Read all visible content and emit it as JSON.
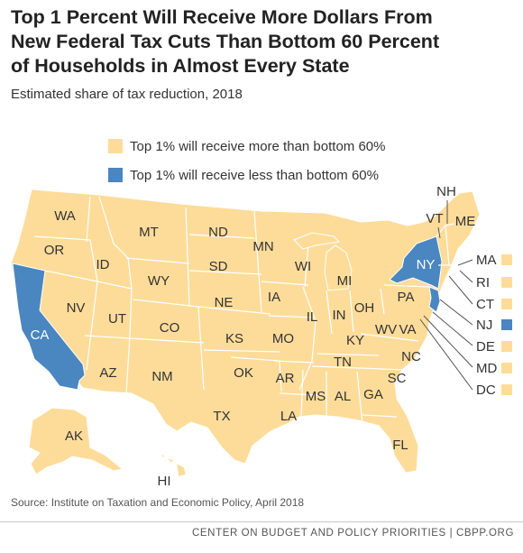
{
  "title_lines": [
    "Top 1 Percent Will Receive More Dollars From",
    "New Federal Tax Cuts Than Bottom 60 Percent",
    "of Households in Almost Every State"
  ],
  "subtitle": "Estimated share of tax reduction, 2018",
  "legend": [
    {
      "label": "Top 1% will receive more than bottom 60%",
      "color": "#fddc9a"
    },
    {
      "label": "Top 1% will receive less than bottom 60%",
      "color": "#4a86c0"
    }
  ],
  "colors": {
    "more": "#fddc9a",
    "less": "#4a86c0",
    "border": "#ffffff",
    "leader": "#555555",
    "text": "#333333"
  },
  "states_less": [
    "CA",
    "NY",
    "NJ"
  ],
  "state_labels": [
    "WA",
    "OR",
    "CA",
    "NV",
    "ID",
    "MT",
    "WY",
    "UT",
    "AZ",
    "CO",
    "NM",
    "ND",
    "SD",
    "NE",
    "KS",
    "OK",
    "TX",
    "MN",
    "IA",
    "MO",
    "AR",
    "LA",
    "WI",
    "IL",
    "MI",
    "IN",
    "OH",
    "KY",
    "TN",
    "MS",
    "AL",
    "GA",
    "FL",
    "SC",
    "NC",
    "VA",
    "WV",
    "PA",
    "NY",
    "VT",
    "NH",
    "ME",
    "AK",
    "HI"
  ],
  "small_states": [
    "MA",
    "RI",
    "CT",
    "NJ",
    "DE",
    "MD",
    "DC"
  ],
  "source": "Source: Institute on Taxation and Economic Policy, April 2018",
  "footer": "CENTER ON BUDGET AND POLICY PRIORITIES | CBPP.ORG"
}
